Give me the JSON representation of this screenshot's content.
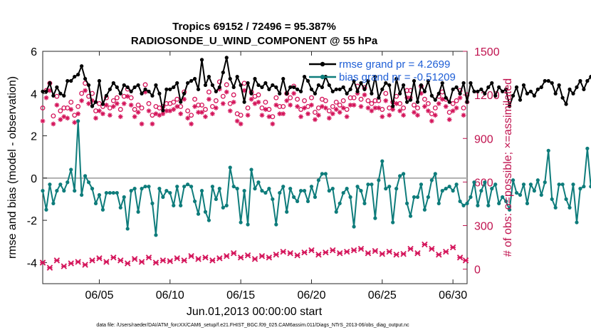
{
  "chart_data": {
    "type": "line",
    "title": "Tropics 69152 / 72496 = 95.387%",
    "subtitle": "RADIOSONDE_U_WIND_COMPONENT @ 55 hPa",
    "xlabel": "Jun.01,2013 00:00:00 start",
    "ylabel": "rmse and bias (model - observation)",
    "ylabel_right": "# of obs: o=possible; ×=assimilated",
    "footer": "data file: /Users/raeder/DAI/ATM_forcXX/CAM6_setup/f.e21.FHIST_BGC.f09_025.CAM6assim.011/Diags_NTrS_2013-06/obs_diag_output.nc",
    "xlim": [
      1,
      31
    ],
    "ylim": [
      -5,
      6
    ],
    "ylim_right": [
      -100,
      1500
    ],
    "x_ticks": [
      5,
      10,
      15,
      20,
      25,
      30
    ],
    "x_tick_labels": [
      "06/05",
      "06/10",
      "06/15",
      "06/20",
      "06/25",
      "06/30"
    ],
    "y_ticks": [
      -4,
      -2,
      0,
      2,
      4,
      6
    ],
    "y_tick_labels": [
      "-4",
      "-2",
      "0",
      "2",
      "4",
      "6"
    ],
    "y_ticks_right": [
      0,
      300,
      600,
      900,
      1200,
      1500
    ],
    "y_tick_labels_right": [
      "0",
      "300",
      "600",
      "900",
      "1200",
      "1500"
    ],
    "x_start": 1.0,
    "x_step": 0.25,
    "series": [
      {
        "name": "rmse grand pr = 4.2699",
        "axis": "left",
        "color": "#000000",
        "values": [
          4.1,
          4.1,
          4.5,
          3.9,
          4.3,
          4.0,
          3.9,
          4.6,
          4.6,
          4.8,
          4.9,
          5.3,
          4.7,
          4.4,
          3.4,
          3.6,
          4.6,
          3.5,
          3.9,
          4.2,
          4.5,
          4.3,
          4.0,
          4.4,
          4.3,
          4.1,
          4.3,
          4.4,
          4.0,
          4.2,
          4.1,
          3.9,
          4.4,
          4.0,
          3.2,
          4.2,
          4.2,
          4.3,
          4.5,
          3.6,
          4.0,
          4.5,
          4.6,
          4.7,
          4.2,
          5.6,
          4.4,
          4.8,
          4.4,
          4.1,
          4.3,
          5.0,
          5.7,
          4.7,
          4.3,
          4.8,
          4.4,
          3.6,
          4.5,
          4.0,
          4.7,
          4.4,
          4.3,
          4.5,
          4.2,
          4.4,
          4.3,
          4.0,
          4.7,
          4.0,
          4.3,
          4.3,
          4.2,
          4.1,
          4.8,
          4.6,
          4.2,
          4.0,
          4.4,
          4.3,
          4.8,
          4.4,
          4.1,
          4.2,
          4.2,
          4.3,
          4.0,
          4.2,
          4.6,
          4.1,
          4.5,
          4.2,
          4.6,
          4.0,
          4.8,
          3.8,
          4.2,
          4.5,
          4.4,
          3.4,
          4.7,
          4.0,
          4.4,
          3.6,
          3.7,
          4.6,
          3.6,
          4.4,
          4.1,
          4.6,
          3.9,
          3.7,
          4.0,
          4.5,
          3.8,
          3.6,
          4.2,
          4.3,
          4.0,
          4.5,
          3.6,
          4.5,
          4.1,
          4.1,
          4.2,
          4.0,
          4.3,
          4.5,
          3.9,
          4.3,
          4.1,
          4.2,
          3.4,
          3.9,
          4.3,
          3.7,
          4.4,
          4.0,
          4.1,
          3.9,
          4.2,
          4.3,
          4.6,
          4.6,
          4.5,
          4.0,
          4.4,
          3.8,
          3.5,
          4.2,
          4.0,
          4.3,
          4.6,
          4.2,
          4.6,
          4.8,
          4.1,
          4.1,
          3.7,
          3.9,
          3.6,
          5.3,
          4.1,
          4.0,
          3.5
        ]
      },
      {
        "name": "bias grand pr = -0.51209",
        "axis": "left",
        "color": "#0e7c7b",
        "values": [
          -0.6,
          -1.5,
          -0.3,
          -1.2,
          -0.6,
          -0.3,
          -0.6,
          -0.2,
          0.4,
          -0.6,
          2.7,
          -0.8,
          0.1,
          -0.2,
          -0.5,
          -1.2,
          -0.8,
          -1.5,
          -0.7,
          -0.7,
          -0.7,
          -0.7,
          -1.4,
          -0.9,
          -2.4,
          -0.6,
          -0.5,
          -1.6,
          -0.5,
          -0.4,
          -0.4,
          -1.2,
          -2.7,
          -0.5,
          -0.9,
          -0.6,
          -0.7,
          -1.3,
          -0.4,
          -1.3,
          -0.4,
          -0.3,
          -0.4,
          -1.1,
          -1.7,
          -0.6,
          -1.6,
          -2.0,
          -0.4,
          -1.0,
          -0.5,
          -1.4,
          -1.3,
          0.5,
          -0.4,
          -0.5,
          -2.1,
          -0.6,
          -2.2,
          0.4,
          -0.5,
          -0.2,
          -0.6,
          -0.7,
          -0.5,
          -1.0,
          -2.2,
          -0.7,
          -0.4,
          -1.6,
          -0.5,
          -0.9,
          -1.1,
          -0.6,
          -0.6,
          -1.1,
          -0.4,
          -0.9,
          -0.1,
          0.2,
          0.2,
          -0.6,
          -0.5,
          -1.6,
          -1.2,
          -0.7,
          -0.5,
          -0.9,
          -2.3,
          -0.4,
          -0.6,
          -1.2,
          -0.3,
          -0.3,
          -1.9,
          -0.1,
          0.8,
          -0.5,
          -0.4,
          -2.1,
          -0.5,
          0.1,
          0.2,
          -1.2,
          -1.8,
          -0.9,
          -0.9,
          -0.3,
          -1.5,
          -0.9,
          -0.1,
          0.2,
          -1.2,
          -0.6,
          -0.5,
          -0.4,
          -0.6,
          -0.3,
          -1.1,
          -1.3,
          -1.2,
          -0.9,
          -0.2,
          -1.3,
          -0.6,
          -0.2,
          -1.3,
          -0.5,
          -0.3,
          -1.2,
          -0.9,
          -1.1,
          -1.5,
          -0.1,
          -0.7,
          -0.8,
          -0.3,
          -1.2,
          -0.3,
          -0.6,
          -0.1,
          -0.8,
          -0.2,
          1.3,
          -1.0,
          -1.4,
          -0.3,
          -0.3,
          -1.0,
          -1.4,
          -0.3,
          -2.1,
          -0.5,
          -0.4,
          1.4,
          -0.4,
          -0.2,
          -0.1,
          -0.2,
          -3.2,
          -0.7,
          -0.2
        ]
      },
      {
        "name": "obs possible",
        "axis": "right",
        "color": "#d4145a",
        "marker": "o",
        "values": [
          1110,
          1230,
          1280,
          1055,
          1190,
          1090,
          1110,
          1110,
          1150,
          1060,
          1120,
          1210,
          1280,
          1190,
          1210,
          1090,
          1140,
          1120,
          1180,
          1110,
          1160,
          1180,
          1100,
          1190,
          1240,
          1180,
          1100,
          1130,
          1110,
          1270,
          1140,
          1060,
          1120,
          1110,
          1120,
          1140,
          1140,
          1150,
          1170,
          1120,
          1220,
          1090,
          1060,
          1170,
          1130,
          1130,
          1100,
          1220,
          1120,
          1160,
          1290,
          1190,
          1270,
          1140,
          1200,
          1070,
          1060,
          1280,
          1110,
          1220,
          1190,
          1200,
          1110,
          1150,
          1100,
          1050,
          1180,
          1120,
          1120,
          1210,
          1180,
          1260,
          1170,
          1100,
          1160,
          1120,
          1180,
          1080,
          1110,
          1170,
          1160,
          1090,
          1120,
          1150,
          1130,
          1160,
          1100,
          1180,
          1180,
          1260,
          1170,
          1250,
          1160,
          1140,
          1160,
          1160,
          1100,
          1210,
          1110,
          1150,
          1190,
          1140,
          1110,
          1230,
          1230,
          1130,
          1110,
          1260,
          1170,
          1140,
          1070,
          1110,
          1190,
          1220,
          1170,
          1080,
          1140,
          1160,
          1230,
          1110,
          1200,
          1230,
          1160,
          1130,
          1100,
          1160,
          1120,
          1180,
          1140,
          1250,
          1140,
          1110,
          1200,
          1150,
          1130,
          1120,
          1070,
          1190,
          1060,
          1160,
          1180,
          1210,
          1170,
          1100,
          1040,
          1160,
          1180,
          1120,
          1140,
          1120,
          1260,
          1170,
          1130,
          1150,
          1320,
          1260,
          1120,
          1090,
          1180,
          1210,
          1120,
          1140,
          1140,
          1120
        ]
      },
      {
        "name": "obs assimilated",
        "axis": "right",
        "color": "#d4145a",
        "marker": "*",
        "values": [
          1020,
          1180,
          1230,
          1000,
          1130,
          1030,
          1050,
          1040,
          1100,
          1010,
          1070,
          1160,
          1230,
          1140,
          1160,
          1040,
          1090,
          1070,
          1130,
          1060,
          1120,
          1140,
          1050,
          1140,
          1190,
          1130,
          1050,
          1080,
          1000,
          1220,
          1090,
          1000,
          1070,
          1060,
          1070,
          1090,
          1090,
          1100,
          1120,
          1070,
          1170,
          1040,
          1000,
          1120,
          1080,
          1080,
          1050,
          1170,
          1070,
          1110,
          1240,
          1140,
          1220,
          1090,
          1150,
          1020,
          1000,
          1230,
          1060,
          1170,
          1140,
          1150,
          1060,
          1100,
          1050,
          1000,
          1130,
          1070,
          1070,
          1160,
          1130,
          1210,
          1120,
          1050,
          1110,
          1070,
          1130,
          1030,
          1060,
          1120,
          1110,
          1040,
          1070,
          1100,
          1080,
          1110,
          1050,
          1130,
          1130,
          1210,
          1120,
          1200,
          1110,
          1090,
          1110,
          1110,
          1050,
          1160,
          1060,
          1100,
          1140,
          1090,
          1060,
          1180,
          1180,
          1080,
          1060,
          1210,
          1120,
          1090,
          1020,
          1060,
          1140,
          1170,
          1120,
          1030,
          1090,
          1110,
          1180,
          1060,
          1150,
          1180,
          1110,
          1080,
          1050,
          1110,
          1070,
          1130,
          1090,
          1200,
          1090,
          1060,
          1150,
          1100,
          1080,
          1070,
          1020,
          1140,
          1000,
          1110,
          1130,
          1160,
          1120,
          1050,
          1000,
          1110,
          1130,
          1070,
          1090,
          1070,
          1210,
          1120,
          1080,
          1100,
          1270,
          1210,
          1070,
          1040,
          1130,
          1160,
          1070,
          1090,
          1090,
          1070
        ]
      },
      {
        "name": "obs low",
        "axis": "right",
        "color": "#d4145a",
        "marker": "x",
        "x": [
          1.0,
          1.5,
          2.0,
          2.5,
          3.0,
          3.5,
          4.0,
          4.5,
          5.0,
          5.5,
          6.0,
          6.5,
          7.0,
          7.5,
          8.0,
          8.5,
          9.0,
          9.5,
          10.0,
          10.5,
          11.0,
          11.5,
          12.0,
          12.5,
          13.0,
          13.5,
          14.0,
          14.5,
          15.0,
          15.5,
          16.0,
          16.5,
          17.0,
          17.5,
          18.0,
          18.5,
          19.0,
          19.5,
          20.0,
          20.5,
          21.0,
          21.5,
          22.0,
          22.5,
          23.0,
          23.5,
          24.0,
          24.5,
          25.0,
          25.5,
          26.0,
          26.5,
          27.0,
          27.5,
          28.0,
          28.5,
          29.0,
          29.5,
          30.0,
          30.5,
          30.9
        ],
        "values": [
          45,
          10,
          60,
          20,
          40,
          50,
          30,
          60,
          75,
          50,
          80,
          60,
          40,
          70,
          50,
          80,
          45,
          60,
          55,
          75,
          60,
          90,
          70,
          80,
          60,
          75,
          90,
          110,
          80,
          95,
          70,
          90,
          80,
          100,
          120,
          110,
          95,
          115,
          130,
          100,
          115,
          130,
          110,
          120,
          130,
          140,
          110,
          125,
          105,
          120,
          100,
          105,
          140,
          110,
          170,
          140,
          100,
          120,
          150,
          80,
          60
        ]
      }
    ]
  }
}
